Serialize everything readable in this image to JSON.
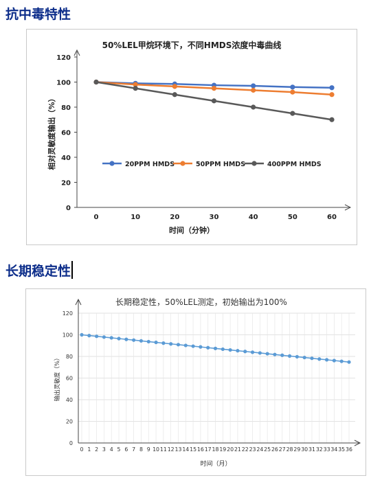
{
  "sections": {
    "poison_title": "抗中毒特性",
    "stability_title": "长期稳定性"
  },
  "chart_data": [
    {
      "type": "line",
      "title": "50%LEL甲烷环境下，不同HMDS浓度中毒曲线",
      "xlabel": "时间（分钟）",
      "ylabel": "相对灵敏度输出（%）",
      "x": [
        0,
        10,
        20,
        30,
        40,
        50,
        60
      ],
      "ylim": [
        0,
        120
      ],
      "yticks": [
        0,
        20,
        40,
        60,
        80,
        100,
        120
      ],
      "legend_position": "inside-lower-left",
      "series": [
        {
          "name": "20PPM HMDS",
          "color": "#4472c4",
          "values": [
            100,
            99,
            98.5,
            97.5,
            97,
            96,
            95.5
          ]
        },
        {
          "name": "50PPM HMDS",
          "color": "#ed7d31",
          "values": [
            100,
            98,
            96.5,
            95,
            93.5,
            92,
            90
          ]
        },
        {
          "name": "400PPM HMDS",
          "color": "#595959",
          "values": [
            100,
            95,
            90,
            85,
            80,
            75,
            70
          ]
        }
      ]
    },
    {
      "type": "line",
      "title": "长期稳定性，50%LEL测定，初始输出为100%",
      "xlabel": "时间（月）",
      "ylabel": "输出灵敏度（%）",
      "ylim": [
        0,
        120
      ],
      "yticks": [
        0,
        20,
        40,
        60,
        80,
        100,
        120
      ],
      "x": [
        0,
        1,
        2,
        3,
        4,
        5,
        6,
        7,
        8,
        9,
        10,
        11,
        12,
        13,
        14,
        15,
        16,
        17,
        18,
        19,
        20,
        21,
        22,
        23,
        24,
        25,
        26,
        27,
        28,
        29,
        30,
        31,
        32,
        33,
        34,
        35,
        36
      ],
      "grid": true,
      "series": [
        {
          "color": "#5b9bd5",
          "values": [
            100,
            99.3,
            98.6,
            97.9,
            97.2,
            96.5,
            95.8,
            95.1,
            94.4,
            93.7,
            93.0,
            92.3,
            91.6,
            90.9,
            90.2,
            89.5,
            88.8,
            88.1,
            87.4,
            86.7,
            86.0,
            85.3,
            84.6,
            83.9,
            83.2,
            82.5,
            81.8,
            81.1,
            80.4,
            79.7,
            79.0,
            78.3,
            77.6,
            76.9,
            76.2,
            75.5,
            74.8
          ]
        }
      ]
    }
  ]
}
